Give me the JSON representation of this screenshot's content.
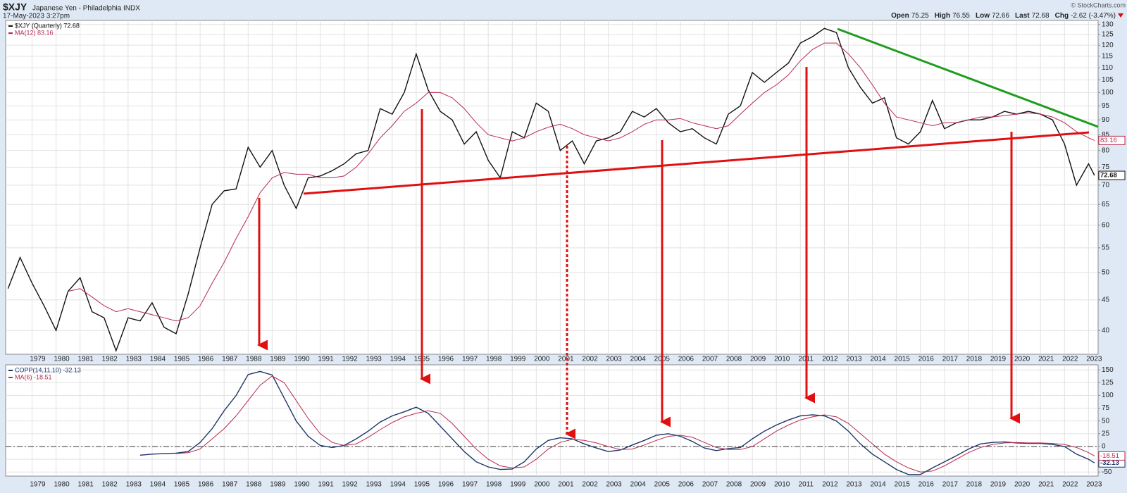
{
  "header": {
    "symbol": "$XJY",
    "title": "Japanese Yen - Philadelphia  INDX",
    "date": "17-May-2023 3:27pm",
    "copyright": "© StockCharts.com",
    "quote": [
      {
        "label": "Open",
        "value": "75.25"
      },
      {
        "label": "High",
        "value": "76.55"
      },
      {
        "label": "Low",
        "value": "72.66"
      },
      {
        "label": "Last",
        "value": "72.68"
      },
      {
        "label": "Chg",
        "value": "-2.62 (-3.47%)"
      }
    ]
  },
  "chart_data": [
    {
      "type": "line",
      "log_scale": true,
      "grid": true,
      "x": [
        1978,
        1978.5,
        1979,
        1979.5,
        1980,
        1980.5,
        1981,
        1981.5,
        1982,
        1982.5,
        1983,
        1983.5,
        1984,
        1984.5,
        1985,
        1985.5,
        1986,
        1986.5,
        1987,
        1987.5,
        1988,
        1988.5,
        1989,
        1989.5,
        1990,
        1990.5,
        1991,
        1991.5,
        1992,
        1992.5,
        1993,
        1993.5,
        1994,
        1994.5,
        1995,
        1995.5,
        1996,
        1996.5,
        1997,
        1997.5,
        1998,
        1998.5,
        1999,
        1999.5,
        2000,
        2000.5,
        2001,
        2001.5,
        2002,
        2002.5,
        2003,
        2003.5,
        2004,
        2004.5,
        2005,
        2005.5,
        2006,
        2006.5,
        2007,
        2007.5,
        2008,
        2008.5,
        2009,
        2009.5,
        2010,
        2010.5,
        2011,
        2011.5,
        2012,
        2012.5,
        2013,
        2013.5,
        2014,
        2014.5,
        2015,
        2015.5,
        2016,
        2016.5,
        2017,
        2017.5,
        2018,
        2018.5,
        2019,
        2019.5,
        2020,
        2020.5,
        2021,
        2021.5,
        2022,
        2022.5,
        2023,
        2023.25
      ],
      "series": [
        {
          "name": "$XJY (Quarterly) 72.68",
          "color": "#111111",
          "values": [
            47,
            53,
            48,
            44,
            40,
            46.5,
            49,
            43,
            42,
            37,
            42,
            41.5,
            44.5,
            40.5,
            39.5,
            46,
            55,
            65,
            68.5,
            69,
            81,
            75,
            80,
            70,
            64,
            72,
            72.5,
            74,
            76,
            79,
            80,
            94,
            92,
            100,
            116,
            101,
            93,
            90,
            82,
            86,
            77,
            72,
            86,
            84,
            96,
            93,
            80,
            83,
            76,
            83,
            84,
            86,
            93,
            91,
            94,
            89,
            86,
            87,
            84,
            82,
            92,
            95,
            108,
            104,
            108,
            112,
            121,
            124,
            128,
            126,
            110,
            102,
            96,
            98,
            84,
            82,
            86,
            97,
            87,
            89,
            90,
            90,
            91,
            93,
            92,
            93,
            92,
            90,
            82,
            70,
            76,
            72.68
          ]
        },
        {
          "name": "MA(12) 83.16",
          "color": "#b8284e",
          "values": [
            null,
            null,
            null,
            null,
            null,
            46.5,
            47,
            45.5,
            44,
            43,
            43.5,
            43,
            42.5,
            42,
            41.5,
            42,
            44,
            48,
            52,
            57,
            62,
            68,
            72,
            73.5,
            73,
            73,
            72,
            72,
            72.5,
            75,
            79,
            84,
            88,
            93,
            96,
            100,
            100,
            98,
            94,
            89,
            85,
            84,
            83,
            84,
            86,
            87.5,
            88.5,
            87,
            85,
            84,
            83,
            84,
            86,
            88.5,
            90,
            90,
            90.5,
            89,
            88,
            87,
            88,
            92,
            96,
            100,
            103,
            107,
            113,
            118,
            121,
            121,
            116,
            110,
            103,
            96,
            91,
            90,
            89,
            88,
            89,
            89,
            90,
            91,
            91,
            91.5,
            92,
            92.5,
            92,
            91,
            89,
            86,
            84,
            83.16
          ]
        }
      ],
      "xlim": [
        1977.9,
        2023.4
      ],
      "xticks": [
        1979,
        1980,
        1981,
        1982,
        1983,
        1984,
        1985,
        1986,
        1987,
        1988,
        1989,
        1990,
        1991,
        1992,
        1993,
        1994,
        1995,
        1996,
        1997,
        1998,
        1999,
        2000,
        2001,
        2002,
        2003,
        2004,
        2005,
        2006,
        2007,
        2008,
        2009,
        2010,
        2011,
        2012,
        2013,
        2014,
        2015,
        2016,
        2017,
        2018,
        2019,
        2020,
        2021,
        2022,
        2023
      ],
      "ylim": [
        36.5,
        132
      ],
      "yticks": [
        40,
        45,
        50,
        55,
        60,
        65,
        70,
        75,
        80,
        85,
        90,
        95,
        100,
        105,
        110,
        115,
        120,
        125,
        130
      ]
    },
    {
      "type": "line",
      "log_scale": false,
      "grid": true,
      "hline": 0,
      "x": [
        1978,
        1978.5,
        1979,
        1979.5,
        1980,
        1980.5,
        1981,
        1981.5,
        1982,
        1982.5,
        1983,
        1983.5,
        1984,
        1984.5,
        1985,
        1985.5,
        1986,
        1986.5,
        1987,
        1987.5,
        1988,
        1988.5,
        1989,
        1989.5,
        1990,
        1990.5,
        1991,
        1991.5,
        1992,
        1992.5,
        1993,
        1993.5,
        1994,
        1994.5,
        1995,
        1995.5,
        1996,
        1996.5,
        1997,
        1997.5,
        1998,
        1998.5,
        1999,
        1999.5,
        2000,
        2000.5,
        2001,
        2001.5,
        2002,
        2002.5,
        2003,
        2003.5,
        2004,
        2004.5,
        2005,
        2005.5,
        2006,
        2006.5,
        2007,
        2007.5,
        2008,
        2008.5,
        2009,
        2009.5,
        2010,
        2010.5,
        2011,
        2011.5,
        2012,
        2012.5,
        2013,
        2013.5,
        2014,
        2014.5,
        2015,
        2015.5,
        2016,
        2016.5,
        2017,
        2017.5,
        2018,
        2018.5,
        2019,
        2019.5,
        2020,
        2020.5,
        2021,
        2021.5,
        2022,
        2022.5,
        2023,
        2023.25
      ],
      "series": [
        {
          "name": "COPP(14,11,10) -32.13",
          "color": "#1c3668",
          "values": [
            null,
            null,
            null,
            null,
            null,
            null,
            null,
            null,
            null,
            null,
            null,
            -17,
            -15,
            -14,
            -13,
            -10,
            8,
            35,
            70,
            100,
            141,
            147,
            140,
            95,
            50,
            20,
            2,
            -2,
            2,
            15,
            30,
            48,
            60,
            68,
            77,
            65,
            40,
            15,
            -10,
            -30,
            -40,
            -45,
            -44,
            -30,
            -5,
            12,
            17,
            15,
            5,
            -3,
            -10,
            -7,
            3,
            12,
            22,
            25,
            20,
            10,
            -3,
            -8,
            -4,
            -2,
            15,
            30,
            42,
            52,
            60,
            62,
            60,
            50,
            30,
            5,
            -15,
            -30,
            -45,
            -55,
            -55,
            -42,
            -30,
            -18,
            -5,
            5,
            8,
            9,
            7,
            6,
            6,
            4,
            0,
            -15,
            -25,
            -32.13
          ]
        },
        {
          "name": "MA(6) -18.51",
          "color": "#b8284e",
          "values": [
            null,
            null,
            null,
            null,
            null,
            null,
            null,
            null,
            null,
            null,
            null,
            null,
            null,
            null,
            -14,
            -12,
            -5,
            15,
            35,
            60,
            90,
            120,
            138,
            125,
            90,
            55,
            25,
            8,
            2,
            5,
            18,
            33,
            47,
            58,
            65,
            70,
            65,
            45,
            20,
            -5,
            -25,
            -38,
            -42,
            -40,
            -25,
            -5,
            8,
            14,
            12,
            7,
            0,
            -6,
            -5,
            3,
            12,
            20,
            22,
            18,
            8,
            -2,
            -6,
            -6,
            0,
            15,
            30,
            42,
            52,
            58,
            62,
            58,
            45,
            25,
            5,
            -15,
            -30,
            -42,
            -50,
            -48,
            -38,
            -25,
            -12,
            -2,
            4,
            7,
            8,
            7,
            7,
            6,
            4,
            -2,
            -12,
            -18.51
          ]
        }
      ],
      "xlim": [
        1977.9,
        2023.4
      ],
      "xticks": [
        1979,
        1980,
        1981,
        1982,
        1983,
        1984,
        1985,
        1986,
        1987,
        1988,
        1989,
        1990,
        1991,
        1992,
        1993,
        1994,
        1995,
        1996,
        1997,
        1998,
        1999,
        2000,
        2001,
        2002,
        2003,
        2004,
        2005,
        2006,
        2007,
        2008,
        2009,
        2010,
        2011,
        2012,
        2013,
        2014,
        2015,
        2016,
        2017,
        2018,
        2019,
        2020,
        2021,
        2022,
        2023
      ],
      "ylim": [
        -58,
        160
      ],
      "yticks": [
        -50,
        -25,
        0,
        25,
        50,
        75,
        100,
        125,
        150
      ]
    }
  ]
}
